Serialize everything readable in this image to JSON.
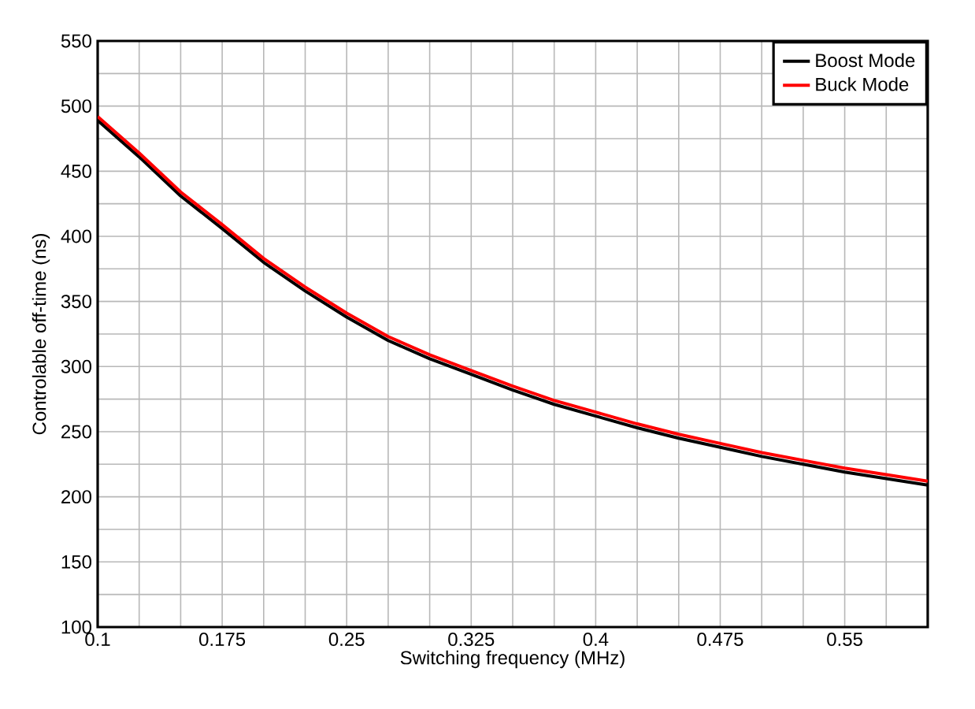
{
  "chart_data": {
    "type": "line",
    "xlabel": "Switching frequency (MHz)",
    "ylabel": "Controlable off-time (ns)",
    "x": [
      0.1,
      0.125,
      0.15,
      0.175,
      0.2,
      0.225,
      0.25,
      0.275,
      0.3,
      0.325,
      0.35,
      0.375,
      0.4,
      0.425,
      0.45,
      0.475,
      0.5,
      0.525,
      0.55,
      0.575,
      0.6
    ],
    "series": [
      {
        "name": "Boost Mode",
        "color": "#000000",
        "values": [
          489,
          461,
          431,
          406,
          380,
          358,
          338,
          320,
          306,
          294,
          282,
          271,
          262,
          253,
          245,
          238,
          231,
          225,
          219,
          214,
          209
        ]
      },
      {
        "name": "Buck Mode",
        "color": "#ff0000",
        "values": [
          492,
          464,
          434,
          409,
          383,
          361,
          341,
          323,
          309,
          297,
          285,
          274,
          265,
          256,
          248,
          241,
          234,
          228,
          222,
          217,
          212
        ]
      }
    ],
    "xlim": [
      0.1,
      0.6
    ],
    "xticks": [
      0.1,
      {
        "value": 0.125,
        "label": null
      },
      {
        "value": 0.15,
        "label": null
      },
      0.175,
      {
        "value": 0.2,
        "label": null
      },
      {
        "value": 0.225,
        "label": null
      },
      0.25,
      {
        "value": 0.275,
        "label": null
      },
      {
        "value": 0.3,
        "label": null
      },
      0.325,
      {
        "value": 0.35,
        "label": null
      },
      {
        "value": 0.375,
        "label": null
      },
      0.4,
      {
        "value": 0.425,
        "label": null
      },
      {
        "value": 0.45,
        "label": null
      },
      0.475,
      {
        "value": 0.5,
        "label": null
      },
      {
        "value": 0.525,
        "label": null
      },
      0.55,
      {
        "value": 0.575,
        "label": null
      },
      {
        "value": 0.6,
        "label": null
      }
    ],
    "ylim": [
      100,
      550
    ],
    "yticks": [
      100,
      {
        "value": 125,
        "label": null
      },
      150,
      {
        "value": 175,
        "label": null
      },
      200,
      {
        "value": 225,
        "label": null
      },
      250,
      {
        "value": 275,
        "label": null
      },
      300,
      {
        "value": 325,
        "label": null
      },
      350,
      {
        "value": 375,
        "label": null
      },
      400,
      {
        "value": 425,
        "label": null
      },
      450,
      {
        "value": 475,
        "label": null
      },
      500,
      {
        "value": 525,
        "label": null
      },
      550
    ],
    "grid": true,
    "legend": "top right",
    "marker": "none",
    "line_style": "solid"
  }
}
